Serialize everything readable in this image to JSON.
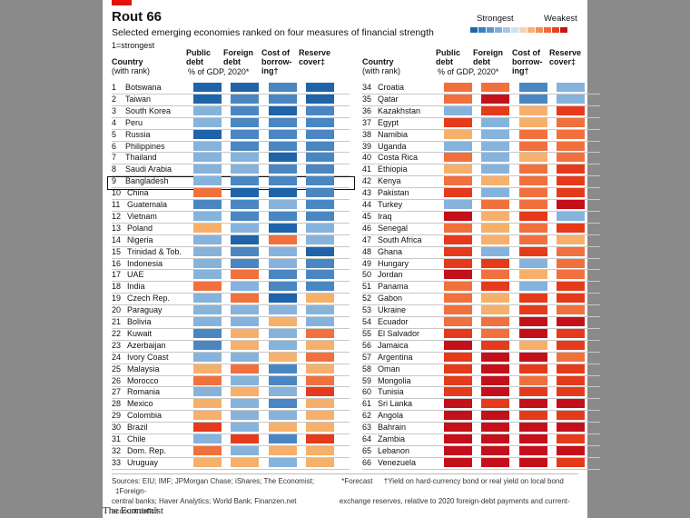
{
  "title": "Rout 66",
  "subtitle": "Selected emerging economies ranked on four measures of financial strength",
  "note_rank": "1=strongest",
  "legend": {
    "strongest": "Strongest",
    "weakest": "Weakest",
    "scale_colors": [
      "#2166ac",
      "#3b7fbf",
      "#5a97cc",
      "#84afd9",
      "#a9c7e4",
      "#d0e1ee",
      "#f6d3ad",
      "#f4b27a",
      "#f19052",
      "#ee6a35",
      "#e3431f",
      "#c91212"
    ]
  },
  "headers": {
    "country": "Country",
    "country_sub": "(with rank)",
    "public_debt": "Public",
    "public_debt2": "debt",
    "foreign_debt": "Foreign",
    "foreign_debt2": "debt",
    "gdp_note": "% of GDP, 2020*",
    "cost": "Cost of",
    "cost2": "borrow-",
    "cost3": "ing†",
    "reserve": "Reserve",
    "reserve2": "cover‡"
  },
  "colors": {
    "1": "#1f63a8",
    "2": "#4a86c2",
    "3": "#86b3dc",
    "4": "#f6b06b",
    "5": "#f0703e",
    "6": "#e53a1b",
    "7": "#c4101a"
  },
  "chart_data": {
    "type": "table",
    "title": "Rout 66",
    "subtitle": "Selected emerging economies ranked on four measures of financial strength",
    "measures": [
      "Public debt",
      "Foreign debt",
      "Cost of borrowing",
      "Reserve cover"
    ],
    "scale_note": "colour bands from 1 (Strongest) to 7 (Weakest)",
    "rows_left": [
      {
        "rank": "1",
        "country": "Botswana",
        "v": [
          1,
          1,
          2,
          1
        ]
      },
      {
        "rank": "2",
        "country": "Taiwan",
        "v": [
          1,
          2,
          2,
          1
        ]
      },
      {
        "rank": "3",
        "country": "South Korea",
        "v": [
          3,
          2,
          1,
          2
        ]
      },
      {
        "rank": "4",
        "country": "Peru",
        "v": [
          3,
          2,
          2,
          2
        ]
      },
      {
        "rank": "5",
        "country": "Russia",
        "v": [
          1,
          2,
          2,
          2
        ]
      },
      {
        "rank": "6",
        "country": "Philippines",
        "v": [
          3,
          2,
          2,
          2
        ]
      },
      {
        "rank": "7",
        "country": "Thailand",
        "v": [
          3,
          3,
          1,
          2
        ]
      },
      {
        "rank": "8",
        "country": "Saudi Arabia",
        "v": [
          3,
          3,
          2,
          2
        ]
      },
      {
        "rank": "9",
        "country": "Bangladesh",
        "v": [
          3,
          2,
          2,
          2
        ]
      },
      {
        "rank": "10",
        "country": "China",
        "v": [
          5,
          1,
          1,
          2
        ]
      },
      {
        "rank": "11",
        "country": "Guatemala",
        "v": [
          2,
          2,
          3,
          2
        ]
      },
      {
        "rank": "12",
        "country": "Vietnam",
        "v": [
          3,
          2,
          2,
          2
        ]
      },
      {
        "rank": "13",
        "country": "Poland",
        "v": [
          4,
          3,
          1,
          3
        ]
      },
      {
        "rank": "14",
        "country": "Nigeria",
        "v": [
          3,
          1,
          5,
          3
        ]
      },
      {
        "rank": "15",
        "country": "Trinidad & Tob.",
        "v": [
          3,
          2,
          3,
          1
        ]
      },
      {
        "rank": "16",
        "country": "Indonesia",
        "v": [
          3,
          2,
          3,
          2
        ]
      },
      {
        "rank": "17",
        "country": "UAE",
        "v": [
          3,
          5,
          2,
          2
        ]
      },
      {
        "rank": "18",
        "country": "India",
        "v": [
          5,
          3,
          2,
          2
        ]
      },
      {
        "rank": "19",
        "country": "Czech Rep.",
        "v": [
          3,
          5,
          1,
          4
        ]
      },
      {
        "rank": "20",
        "country": "Paraguay",
        "v": [
          3,
          3,
          3,
          3
        ]
      },
      {
        "rank": "21",
        "country": "Bolivia",
        "v": [
          3,
          3,
          4,
          3
        ]
      },
      {
        "rank": "22",
        "country": "Kuwait",
        "v": [
          2,
          4,
          3,
          5
        ]
      },
      {
        "rank": "23",
        "country": "Azerbaijan",
        "v": [
          2,
          4,
          3,
          4
        ]
      },
      {
        "rank": "24",
        "country": "Ivory Coast",
        "v": [
          3,
          3,
          4,
          5
        ]
      },
      {
        "rank": "25",
        "country": "Malaysia",
        "v": [
          4,
          5,
          2,
          4
        ]
      },
      {
        "rank": "26",
        "country": "Morocco",
        "v": [
          5,
          3,
          2,
          5
        ]
      },
      {
        "rank": "27",
        "country": "Romania",
        "v": [
          3,
          4,
          3,
          6
        ]
      },
      {
        "rank": "28",
        "country": "Mexico",
        "v": [
          4,
          3,
          2,
          4
        ]
      },
      {
        "rank": "29",
        "country": "Colombia",
        "v": [
          4,
          3,
          3,
          4
        ]
      },
      {
        "rank": "30",
        "country": "Brazil",
        "v": [
          6,
          3,
          4,
          4
        ]
      },
      {
        "rank": "31",
        "country": "Chile",
        "v": [
          3,
          6,
          2,
          6
        ]
      },
      {
        "rank": "32",
        "country": "Dom. Rep.",
        "v": [
          5,
          3,
          4,
          4
        ]
      },
      {
        "rank": "33",
        "country": "Uruguay",
        "v": [
          4,
          4,
          3,
          4
        ]
      }
    ],
    "rows_right": [
      {
        "rank": "34",
        "country": "Croatia",
        "v": [
          5,
          5,
          2,
          3
        ]
      },
      {
        "rank": "35",
        "country": "Qatar",
        "v": [
          5,
          7,
          2,
          3
        ]
      },
      {
        "rank": "36",
        "country": "Kazakhstan",
        "v": [
          3,
          6,
          4,
          6
        ]
      },
      {
        "rank": "37",
        "country": "Egypt",
        "v": [
          6,
          3,
          4,
          5
        ]
      },
      {
        "rank": "38",
        "country": "Namibia",
        "v": [
          4,
          3,
          5,
          5
        ]
      },
      {
        "rank": "39",
        "country": "Uganda",
        "v": [
          3,
          3,
          5,
          5
        ]
      },
      {
        "rank": "40",
        "country": "Costa Rica",
        "v": [
          5,
          3,
          4,
          5
        ]
      },
      {
        "rank": "41",
        "country": "Ethiopia",
        "v": [
          4,
          3,
          5,
          6
        ]
      },
      {
        "rank": "42",
        "country": "Kenya",
        "v": [
          5,
          4,
          5,
          6
        ]
      },
      {
        "rank": "43",
        "country": "Pakistan",
        "v": [
          6,
          3,
          5,
          6
        ]
      },
      {
        "rank": "44",
        "country": "Turkey",
        "v": [
          3,
          5,
          5,
          7
        ]
      },
      {
        "rank": "45",
        "country": "Iraq",
        "v": [
          7,
          4,
          6,
          3
        ]
      },
      {
        "rank": "46",
        "country": "Senegal",
        "v": [
          5,
          4,
          5,
          6
        ]
      },
      {
        "rank": "47",
        "country": "South Africa",
        "v": [
          6,
          4,
          5,
          4
        ]
      },
      {
        "rank": "48",
        "country": "Ghana",
        "v": [
          6,
          3,
          6,
          5
        ]
      },
      {
        "rank": "49",
        "country": "Hungary",
        "v": [
          6,
          6,
          3,
          5
        ]
      },
      {
        "rank": "50",
        "country": "Jordan",
        "v": [
          7,
          5,
          4,
          5
        ]
      },
      {
        "rank": "51",
        "country": "Panama",
        "v": [
          5,
          6,
          3,
          6
        ]
      },
      {
        "rank": "52",
        "country": "Gabon",
        "v": [
          5,
          4,
          6,
          6
        ]
      },
      {
        "rank": "53",
        "country": "Ukraine",
        "v": [
          5,
          4,
          6,
          5
        ]
      },
      {
        "rank": "54",
        "country": "Ecuador",
        "v": [
          5,
          5,
          7,
          7
        ]
      },
      {
        "rank": "55",
        "country": "El Salvador",
        "v": [
          6,
          5,
          7,
          6
        ]
      },
      {
        "rank": "56",
        "country": "Jamaica",
        "v": [
          7,
          6,
          4,
          6
        ]
      },
      {
        "rank": "57",
        "country": "Argentina",
        "v": [
          6,
          7,
          7,
          5
        ]
      },
      {
        "rank": "58",
        "country": "Oman",
        "v": [
          6,
          7,
          6,
          6
        ]
      },
      {
        "rank": "59",
        "country": "Mongolia",
        "v": [
          6,
          7,
          5,
          6
        ]
      },
      {
        "rank": "60",
        "country": "Tunisia",
        "v": [
          6,
          7,
          6,
          6
        ]
      },
      {
        "rank": "61",
        "country": "Sri Lanka",
        "v": [
          7,
          6,
          7,
          7
        ]
      },
      {
        "rank": "62",
        "country": "Angola",
        "v": [
          7,
          7,
          6,
          6
        ]
      },
      {
        "rank": "63",
        "country": "Bahrain",
        "v": [
          7,
          7,
          7,
          7
        ]
      },
      {
        "rank": "64",
        "country": "Zambia",
        "v": [
          7,
          7,
          7,
          6
        ]
      },
      {
        "rank": "65",
        "country": "Lebanon",
        "v": [
          7,
          7,
          7,
          7
        ]
      },
      {
        "rank": "66",
        "country": "Venezuela",
        "v": [
          7,
          7,
          7,
          6
        ]
      }
    ]
  },
  "footer": {
    "sources": "Sources: EIU; IMF; JPMorgan Chase; iShares; The Economist;",
    "sources2": "central banks; Haver Analytics; World Bank; Finanzen.net",
    "forecast": "*Forecast",
    "dagger": "†Yield on hard-currency bond or real yield on local bond",
    "dagger2": "exchange reserves, relative to 2020 foreign-debt payments and current-account deficit",
    "ddagger": "‡Foreign-"
  },
  "brand": "The Economist"
}
